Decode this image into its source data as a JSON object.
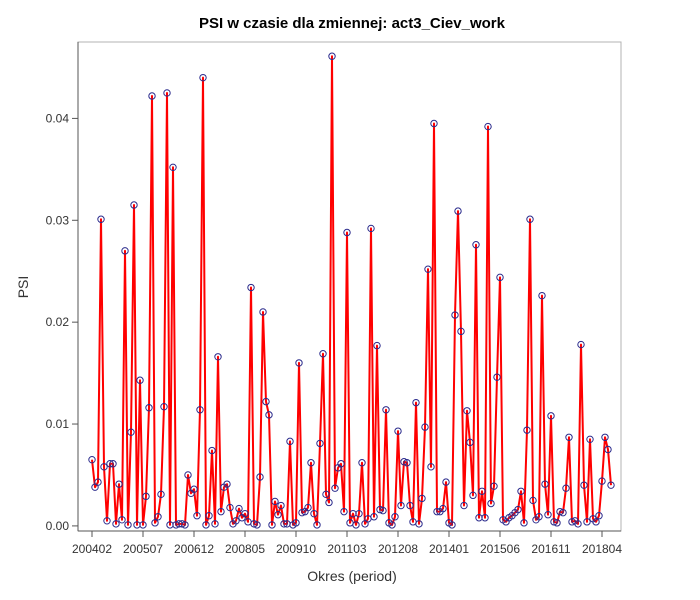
{
  "chart_data": {
    "type": "line",
    "title": "PSI w czasie dla zmiennej: act3_Ciev_work",
    "xlabel": "Okres (period)",
    "ylabel": "PSI",
    "ylim": [
      -0.0005,
      0.0475
    ],
    "y_ticks": [
      0.0,
      0.01,
      0.02,
      0.03,
      0.04
    ],
    "y_tick_labels": [
      "0.00",
      "0.01",
      "0.02",
      "0.03",
      "0.04"
    ],
    "x_tick_labels": [
      "200402",
      "200507",
      "200612",
      "200805",
      "200910",
      "201103",
      "201208",
      "201401",
      "201506",
      "201611",
      "201804"
    ],
    "x_tick_index_step": 17,
    "series": [
      {
        "name": "PSI",
        "line_color": "#ff0000",
        "marker_color": "#2b2b8c",
        "values": [
          0.0065,
          0.0038,
          0.0043,
          0.0301,
          0.0058,
          0.0005,
          0.0061,
          0.0061,
          0.0002,
          0.0041,
          0.0006,
          0.027,
          0.0001,
          0.0092,
          0.0315,
          0.0001,
          0.0143,
          0.0001,
          0.0029,
          0.0116,
          0.0422,
          0.0003,
          0.0009,
          0.0031,
          0.0117,
          0.0425,
          0.0001,
          0.0352,
          0.0001,
          0.0002,
          0.0002,
          0.0001,
          0.005,
          0.0032,
          0.0036,
          0.001,
          0.0114,
          0.044,
          0.0001,
          0.001,
          0.0074,
          0.0002,
          0.0166,
          0.0014,
          0.0038,
          0.0041,
          0.0018,
          0.0002,
          0.0005,
          0.0017,
          0.0008,
          0.0012,
          0.0004,
          0.0234,
          0.0002,
          0.0001,
          0.0048,
          0.021,
          0.0122,
          0.0109,
          0.0001,
          0.0024,
          0.0011,
          0.002,
          0.0002,
          0.0002,
          0.0083,
          0.0001,
          0.0003,
          0.016,
          0.0013,
          0.0014,
          0.0018,
          0.0062,
          0.0012,
          0.0001,
          0.0081,
          0.0169,
          0.0031,
          0.0023,
          0.0461,
          0.0037,
          0.0057,
          0.0061,
          0.0014,
          0.0288,
          0.0003,
          0.0012,
          0.0001,
          0.0012,
          0.0062,
          0.0002,
          0.0007,
          0.0292,
          0.0009,
          0.0177,
          0.0016,
          0.0015,
          0.0114,
          0.0003,
          0.0001,
          0.0009,
          0.0093,
          0.002,
          0.0063,
          0.0062,
          0.002,
          0.0004,
          0.0121,
          0.0002,
          0.0027,
          0.0097,
          0.0252,
          0.0058,
          0.0395,
          0.0014,
          0.0014,
          0.0017,
          0.0043,
          0.0003,
          0.0001,
          0.0207,
          0.0309,
          0.0191,
          0.002,
          0.0113,
          0.0082,
          0.003,
          0.0276,
          0.0008,
          0.0034,
          0.0008,
          0.0392,
          0.0022,
          0.0039,
          0.0146,
          0.0244,
          0.0006,
          0.0004,
          0.0008,
          0.001,
          0.0013,
          0.0016,
          0.0034,
          0.0003,
          0.0094,
          0.0301,
          0.0025,
          0.0006,
          0.0009,
          0.0226,
          0.0041,
          0.0011,
          0.0108,
          0.0004,
          0.0003,
          0.0014,
          0.0013,
          0.0037,
          0.0087,
          0.0004,
          0.0005,
          0.0002,
          0.0178,
          0.004,
          0.0004,
          0.0085,
          0.0007,
          0.0004,
          0.001,
          0.0044,
          0.0087,
          0.0075,
          0.004
        ]
      }
    ]
  }
}
